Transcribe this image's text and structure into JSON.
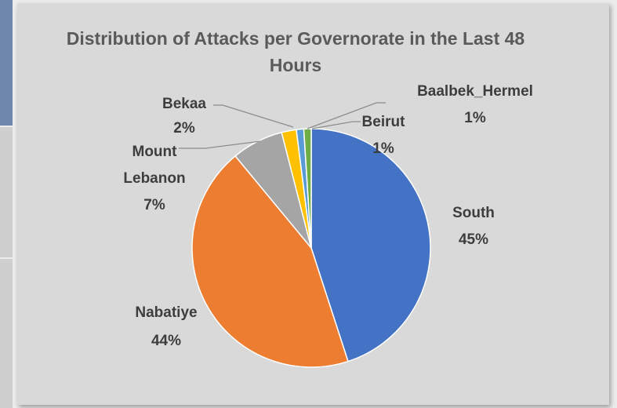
{
  "chart_data": {
    "type": "pie",
    "title": "Distribution of Attacks per Governorate in the Last 48 Hours",
    "categories": [
      "South",
      "Nabatiye",
      "Mount Lebanon",
      "Bekaa",
      "Baalbek_Hermel",
      "Beirut"
    ],
    "values": [
      45,
      44,
      7,
      2,
      1,
      1
    ],
    "value_labels": [
      "45%",
      "44%",
      "7%",
      "2%",
      "1%",
      "1%"
    ],
    "colors": [
      "#4472c4",
      "#ed7d31",
      "#a5a5a5",
      "#ffc000",
      "#5b9bd5",
      "#70ad47"
    ],
    "legend": "none",
    "data_labels": "category name and percentage"
  }
}
